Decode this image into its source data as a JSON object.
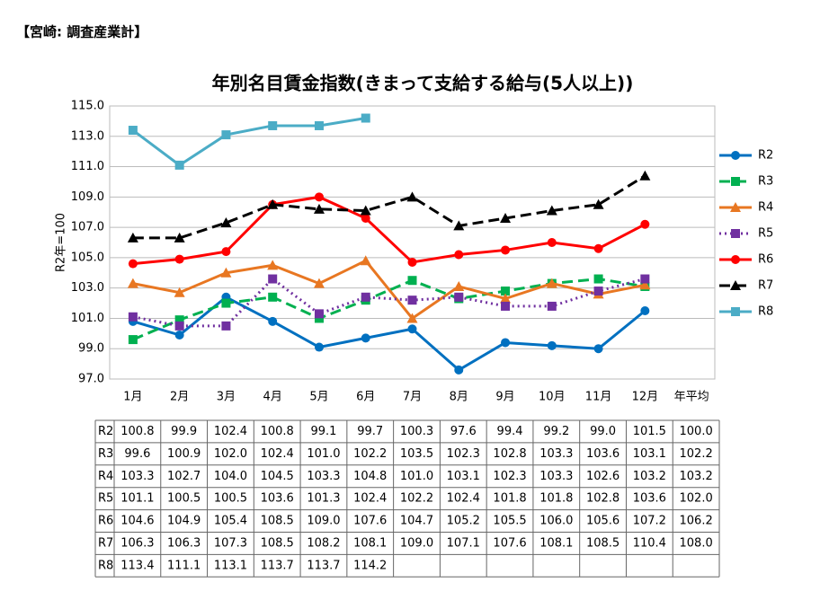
{
  "header": "【宮崎: 調査産業計】",
  "chart_data": {
    "type": "line",
    "title": "年別名目賃金指数(きまって支給する給与(5人以上))",
    "y_label": "R2年=100",
    "categories": [
      "1月",
      "2月",
      "3月",
      "4月",
      "5月",
      "6月",
      "7月",
      "8月",
      "9月",
      "10月",
      "11月",
      "12月"
    ],
    "average_label": "年平均",
    "ylim": [
      97,
      115
    ],
    "yticks": [
      {
        "value": 97,
        "label": "97.0"
      },
      {
        "value": 99,
        "label": "99.0"
      },
      {
        "value": 101,
        "label": "101.0"
      },
      {
        "value": 103,
        "label": "103.0"
      },
      {
        "value": 105,
        "label": "105.0"
      },
      {
        "value": 107,
        "label": "107.0"
      },
      {
        "value": 109,
        "label": "109.0"
      },
      {
        "value": 111,
        "label": "111.0"
      },
      {
        "value": 113,
        "label": "113.0"
      },
      {
        "value": 115,
        "label": "115.0"
      }
    ],
    "grid": true,
    "legend": "right",
    "series": [
      {
        "name": "R2",
        "color": "#0070c0",
        "marker": "circle",
        "dash": "solid",
        "values": [
          100.8,
          99.9,
          102.4,
          100.8,
          99.1,
          99.7,
          100.3,
          97.6,
          99.4,
          99.2,
          99.0,
          101.5
        ],
        "value_labels": [
          "100.8",
          "99.9",
          "102.4",
          "100.8",
          "99.1",
          "99.7",
          "100.3",
          "97.6",
          "99.4",
          "99.2",
          "99.0",
          "101.5"
        ],
        "annual_average": 100.0,
        "annual_average_label": "100.0"
      },
      {
        "name": "R3",
        "color": "#00b050",
        "marker": "square",
        "dash": "dashed",
        "values": [
          99.6,
          100.9,
          102.0,
          102.4,
          101.0,
          102.2,
          103.5,
          102.3,
          102.8,
          103.3,
          103.6,
          103.1
        ],
        "value_labels": [
          "99.6",
          "100.9",
          "102.0",
          "102.4",
          "101.0",
          "102.2",
          "103.5",
          "102.3",
          "102.8",
          "103.3",
          "103.6",
          "103.1"
        ],
        "annual_average": 102.2,
        "annual_average_label": "102.2"
      },
      {
        "name": "R4",
        "color": "#e87722",
        "marker": "triangle",
        "dash": "solid",
        "values": [
          103.3,
          102.7,
          104.0,
          104.5,
          103.3,
          104.8,
          101.0,
          103.1,
          102.3,
          103.3,
          102.6,
          103.2
        ],
        "value_labels": [
          "103.3",
          "102.7",
          "104.0",
          "104.5",
          "103.3",
          "104.8",
          "101.0",
          "103.1",
          "102.3",
          "103.3",
          "102.6",
          "103.2"
        ],
        "annual_average": 103.2,
        "annual_average_label": "103.2"
      },
      {
        "name": "R5",
        "color": "#7030a0",
        "marker": "square",
        "dash": "dotted",
        "values": [
          101.1,
          100.5,
          100.5,
          103.6,
          101.3,
          102.4,
          102.2,
          102.4,
          101.8,
          101.8,
          102.8,
          103.6
        ],
        "value_labels": [
          "101.1",
          "100.5",
          "100.5",
          "103.6",
          "101.3",
          "102.4",
          "102.2",
          "102.4",
          "101.8",
          "101.8",
          "102.8",
          "103.6"
        ],
        "annual_average": 102.0,
        "annual_average_label": "102.0"
      },
      {
        "name": "R6",
        "color": "#ff0000",
        "marker": "circle",
        "dash": "solid",
        "values": [
          104.6,
          104.9,
          105.4,
          108.5,
          109.0,
          107.6,
          104.7,
          105.2,
          105.5,
          106.0,
          105.6,
          107.2
        ],
        "value_labels": [
          "104.6",
          "104.9",
          "105.4",
          "108.5",
          "109.0",
          "107.6",
          "104.7",
          "105.2",
          "105.5",
          "106.0",
          "105.6",
          "107.2"
        ],
        "annual_average": 106.2,
        "annual_average_label": "106.2"
      },
      {
        "name": "R7",
        "color": "#000000",
        "marker": "triangle",
        "dash": "dashed",
        "values": [
          106.3,
          106.3,
          107.3,
          108.5,
          108.2,
          108.1,
          109.0,
          107.1,
          107.6,
          108.1,
          108.5,
          110.4
        ],
        "value_labels": [
          "106.3",
          "106.3",
          "107.3",
          "108.5",
          "108.2",
          "108.1",
          "109.0",
          "107.1",
          "107.6",
          "108.1",
          "108.5",
          "110.4"
        ],
        "annual_average": 108.0,
        "annual_average_label": "108.0"
      },
      {
        "name": "R8",
        "color": "#4bacc6",
        "marker": "square",
        "dash": "solid",
        "values": [
          113.4,
          111.1,
          113.1,
          113.7,
          113.7,
          114.2,
          null,
          null,
          null,
          null,
          null,
          null
        ],
        "value_labels": [
          "113.4",
          "111.1",
          "113.1",
          "113.7",
          "113.7",
          "114.2",
          null,
          null,
          null,
          null,
          null,
          null
        ]
      }
    ]
  }
}
